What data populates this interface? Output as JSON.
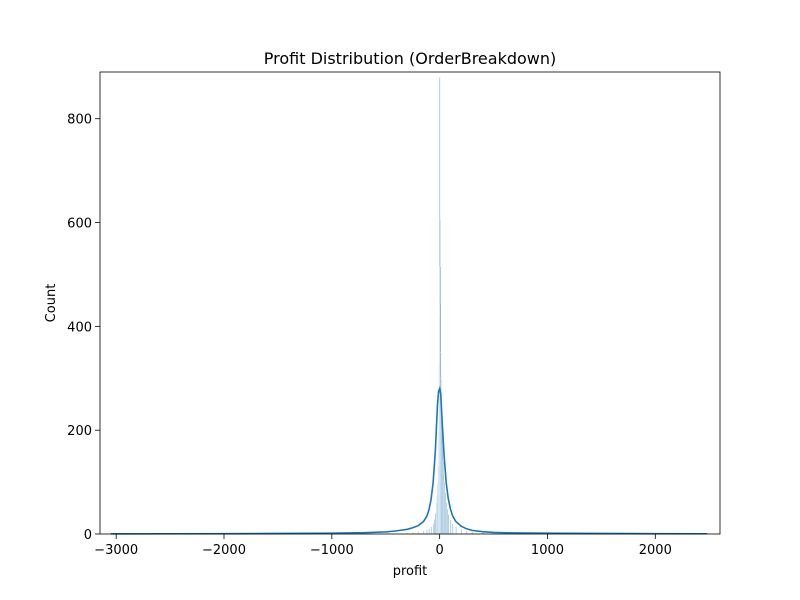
{
  "chart_data": {
    "type": "bar",
    "title": "Profit Distribution (OrderBreakdown)",
    "xlabel": "profit",
    "ylabel": "Count",
    "xlim": [
      -3150,
      2600
    ],
    "ylim": [
      0,
      890
    ],
    "xticks": [
      -3000,
      -2000,
      -1000,
      0,
      1000,
      2000
    ],
    "xtick_labels": [
      "−3000",
      "−2000",
      "−1000",
      "0",
      "1000",
      "2000"
    ],
    "yticks": [
      0,
      200,
      400,
      600,
      800
    ],
    "ytick_labels": [
      "0",
      "200",
      "400",
      "600",
      "800"
    ],
    "grid": false,
    "legend": "none",
    "bar_color": "#1f77b4",
    "kde_color": "#1f77b4",
    "histogram": {
      "bin_width": 5,
      "bars": [
        {
          "x": -300,
          "count": 2
        },
        {
          "x": -250,
          "count": 3
        },
        {
          "x": -200,
          "count": 4
        },
        {
          "x": -150,
          "count": 6
        },
        {
          "x": -120,
          "count": 8
        },
        {
          "x": -100,
          "count": 10
        },
        {
          "x": -80,
          "count": 14
        },
        {
          "x": -60,
          "count": 20
        },
        {
          "x": -50,
          "count": 28
        },
        {
          "x": -40,
          "count": 40
        },
        {
          "x": -30,
          "count": 60
        },
        {
          "x": -25,
          "count": 75
        },
        {
          "x": -20,
          "count": 95
        },
        {
          "x": -15,
          "count": 130
        },
        {
          "x": -10,
          "count": 200
        },
        {
          "x": -7,
          "count": 260
        },
        {
          "x": -5,
          "count": 330
        },
        {
          "x": -3,
          "count": 420
        },
        {
          "x": -1,
          "count": 880
        },
        {
          "x": 1,
          "count": 605
        },
        {
          "x": 3,
          "count": 515
        },
        {
          "x": 5,
          "count": 445
        },
        {
          "x": 7,
          "count": 350
        },
        {
          "x": 10,
          "count": 300
        },
        {
          "x": 13,
          "count": 270
        },
        {
          "x": 16,
          "count": 240
        },
        {
          "x": 20,
          "count": 200
        },
        {
          "x": 25,
          "count": 170
        },
        {
          "x": 30,
          "count": 140
        },
        {
          "x": 35,
          "count": 115
        },
        {
          "x": 40,
          "count": 100
        },
        {
          "x": 50,
          "count": 80
        },
        {
          "x": 60,
          "count": 60
        },
        {
          "x": 70,
          "count": 48
        },
        {
          "x": 80,
          "count": 38
        },
        {
          "x": 100,
          "count": 28
        },
        {
          "x": 120,
          "count": 20
        },
        {
          "x": 150,
          "count": 14
        },
        {
          "x": 200,
          "count": 9
        },
        {
          "x": 250,
          "count": 6
        },
        {
          "x": 300,
          "count": 4
        },
        {
          "x": 400,
          "count": 3
        },
        {
          "x": 500,
          "count": 2
        },
        {
          "x": 700,
          "count": 1
        }
      ]
    },
    "kde": {
      "x": [
        -3050,
        -2500,
        -2000,
        -1500,
        -1000,
        -700,
        -500,
        -400,
        -300,
        -250,
        -200,
        -150,
        -120,
        -100,
        -80,
        -60,
        -40,
        -20,
        -10,
        0,
        10,
        20,
        40,
        60,
        80,
        100,
        120,
        150,
        200,
        250,
        300,
        400,
        500,
        700,
        1000,
        1500,
        2000,
        2480
      ],
      "y": [
        0.3,
        0.5,
        0.7,
        1,
        1.5,
        2.5,
        4,
        6,
        9,
        12,
        16,
        24,
        34,
        46,
        66,
        100,
        160,
        250,
        275,
        280,
        270,
        230,
        155,
        100,
        68,
        48,
        35,
        24,
        15,
        10,
        7,
        4.5,
        3,
        2,
        1.5,
        1,
        0.7,
        0.5
      ]
    }
  }
}
